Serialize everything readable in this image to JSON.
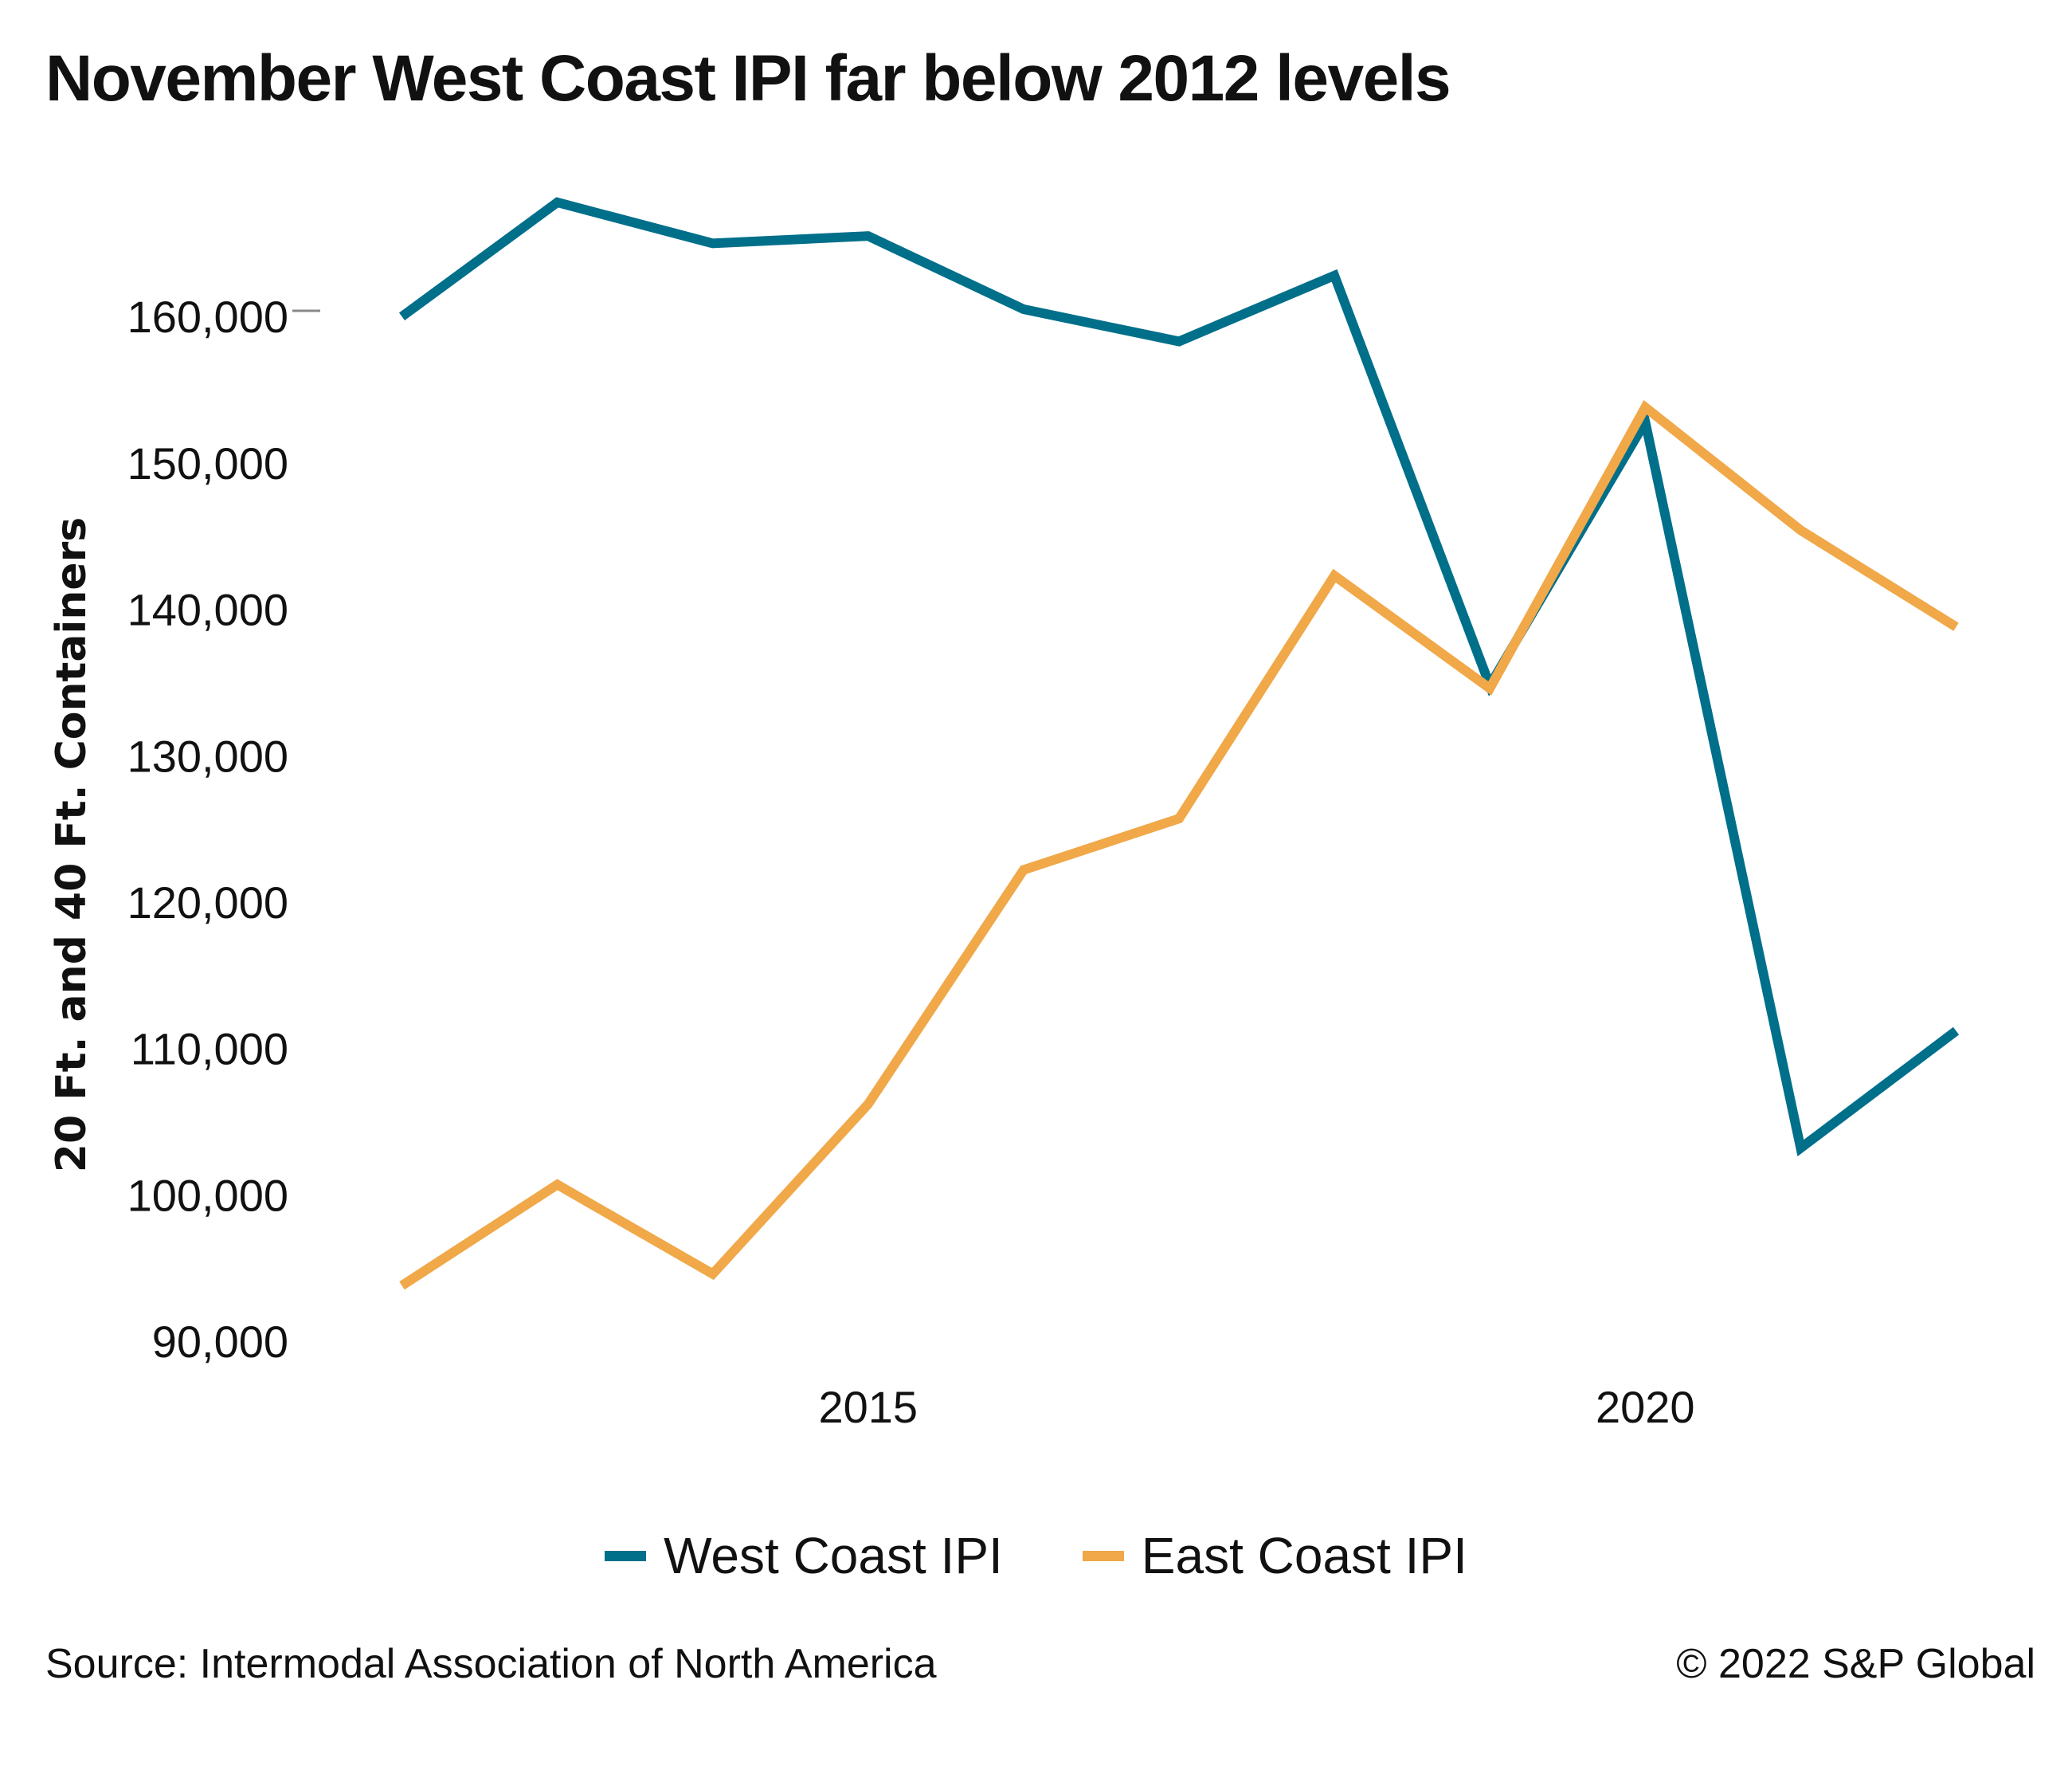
{
  "chart_data": {
    "type": "line",
    "title": "November West Coast IPI far below 2012 levels",
    "ylabel": "20 Ft. and 40 Ft. Containers",
    "xlabel": "",
    "x": [
      2012,
      2013,
      2014,
      2015,
      2016,
      2017,
      2018,
      2019,
      2020,
      2021,
      2022
    ],
    "x_ticks": [
      2015,
      2020
    ],
    "x_tick_labels": [
      "2015",
      "2020"
    ],
    "xlim": [
      2011.9,
      2022.1
    ],
    "ylim": [
      90000,
      166000
    ],
    "y_ticks": [
      90000,
      100000,
      110000,
      120000,
      130000,
      140000,
      150000,
      160000
    ],
    "y_tick_labels": [
      "90,000",
      "100,000",
      "110,000",
      "120,000",
      "130,000",
      "140,000",
      "150,000",
      "160,000"
    ],
    "grid": false,
    "legend_position": "bottom-center",
    "series": [
      {
        "name": "West Coast IPI",
        "color": "#006f8a",
        "values": [
          160000,
          167800,
          165000,
          165500,
          160500,
          158300,
          162800,
          134800,
          152800,
          103200,
          111200
        ]
      },
      {
        "name": "East Coast IPI",
        "color": "#f0a848",
        "values": [
          93800,
          100700,
          94600,
          106200,
          122200,
          125700,
          142300,
          134600,
          153800,
          145400,
          138800
        ]
      }
    ]
  },
  "footer": {
    "source": "Source: Intermodal Association of North America",
    "copyright": "© 2022 S&P Global"
  }
}
